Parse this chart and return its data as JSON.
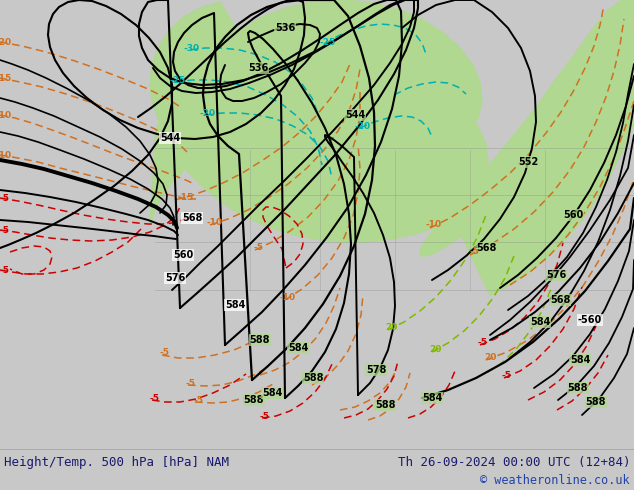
{
  "title_left": "Height/Temp. 500 hPa [hPa] NAM",
  "title_right": "Th 26-09-2024 00:00 UTC (12+84)",
  "copyright": "© weatheronline.co.uk",
  "bg_gray": "#c8c8c8",
  "green_fill": "#b0d890",
  "bottom_bg": "#dcdcdc",
  "text_navy": "#1a1a6e",
  "text_blue": "#2244aa",
  "orange": "#d07020",
  "red": "#cc0000",
  "cyan": "#00b0b0",
  "lime": "#80b800",
  "fig_w": 6.34,
  "fig_h": 4.9,
  "dpi": 100
}
